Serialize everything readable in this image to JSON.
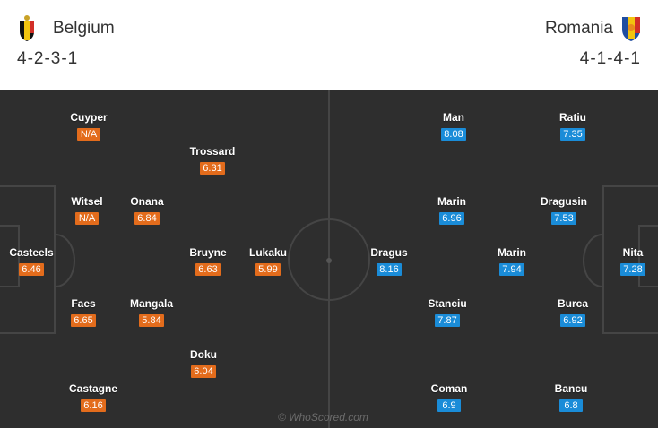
{
  "home": {
    "name": "Belgium",
    "formation": "4-2-3-1",
    "crest_colors": [
      "#111111",
      "#f2c40f",
      "#d22f27"
    ]
  },
  "away": {
    "name": "Romania",
    "formation": "4-1-4-1",
    "crest_colors": [
      "#1f4da1",
      "#f2c40f",
      "#d22f27"
    ]
  },
  "players": {
    "home": [
      {
        "name": "Cuyper",
        "rating": "N/A"
      },
      {
        "name": "Trossard",
        "rating": "6.31"
      },
      {
        "name": "Witsel",
        "rating": "N/A"
      },
      {
        "name": "Onana",
        "rating": "6.84"
      },
      {
        "name": "Casteels",
        "rating": "6.46"
      },
      {
        "name": "Bruyne",
        "rating": "6.63"
      },
      {
        "name": "Lukaku",
        "rating": "5.99"
      },
      {
        "name": "Faes",
        "rating": "6.65"
      },
      {
        "name": "Mangala",
        "rating": "5.84"
      },
      {
        "name": "Doku",
        "rating": "6.04"
      },
      {
        "name": "Castagne",
        "rating": "6.16"
      }
    ],
    "away": [
      {
        "name": "Man",
        "rating": "8.08"
      },
      {
        "name": "Ratiu",
        "rating": "7.35"
      },
      {
        "name": "Marin",
        "rating": "6.96"
      },
      {
        "name": "Dragusin",
        "rating": "7.53"
      },
      {
        "name": "Dragus",
        "rating": "8.16"
      },
      {
        "name": "Marin",
        "rating": "7.94"
      },
      {
        "name": "Nita",
        "rating": "7.28"
      },
      {
        "name": "Stanciu",
        "rating": "7.87"
      },
      {
        "name": "Burca",
        "rating": "6.92"
      },
      {
        "name": "Coman",
        "rating": "6.9"
      },
      {
        "name": "Bancu",
        "rating": "6.8"
      }
    ]
  },
  "watermark": "© WhoScored.com",
  "colors": {
    "pitch": "#2e2e2e",
    "pitch_lines": "#454545",
    "home_rating": "#e36c1c",
    "away_rating": "#1a8cd8"
  }
}
